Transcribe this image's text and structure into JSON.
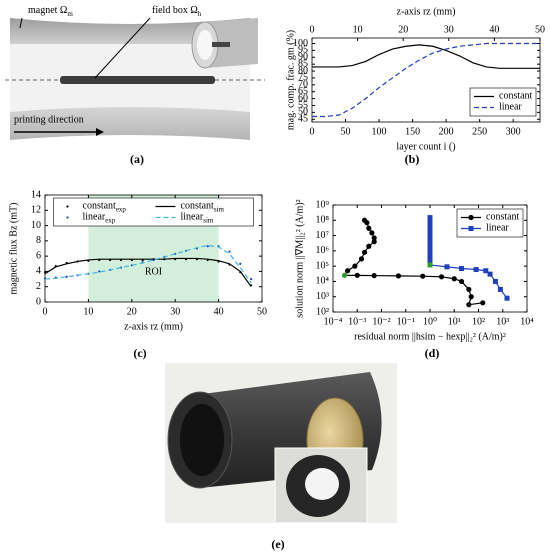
{
  "figure": {
    "captions": [
      "(a)",
      "(b)",
      "(c)",
      "(d)",
      "(e)"
    ],
    "panel_a": {
      "magnet": {
        "text": "magnet Ω",
        "sub": "m"
      },
      "field_box": {
        "text": "field box Ω",
        "sub": "h"
      },
      "printing_direction": "printing direction"
    }
  },
  "chart_data": [
    {
      "type": "line",
      "xlabel": "layer count i ()",
      "x2label": "z-axis rz (mm)",
      "ylabel": "mag. comp. frac. gm (%)",
      "xlim": [
        0,
        340
      ],
      "xticks": [
        0,
        50,
        100,
        150,
        200,
        250,
        300
      ],
      "x2lim": [
        0,
        50
      ],
      "x2ticks": [
        0,
        10,
        20,
        30,
        40,
        50
      ],
      "ylim": [
        43,
        104
      ],
      "yticks": [
        45,
        50,
        55,
        60,
        65,
        70,
        75,
        80,
        85,
        90,
        95,
        100
      ],
      "legend": "lower right",
      "x": [
        0,
        20,
        40,
        60,
        80,
        100,
        120,
        140,
        160,
        180,
        200,
        220,
        240,
        260,
        280,
        300,
        320,
        340
      ],
      "series": [
        {
          "name": "constant",
          "color": "#000000",
          "values": [
            83,
            83,
            83,
            84,
            87,
            92,
            96,
            98,
            99,
            98,
            95,
            91,
            86,
            83,
            82,
            82,
            82,
            82
          ]
        },
        {
          "name": "linear",
          "color": "#1f3fbf",
          "dash": true,
          "values": [
            47,
            47,
            48,
            53,
            60,
            68,
            75,
            82,
            88,
            93,
            96,
            98,
            99,
            100,
            100,
            100,
            100,
            100
          ]
        }
      ]
    },
    {
      "type": "line",
      "xlabel": "z-axis rz (mm)",
      "ylabel": "magnetic flux Bz (mT)",
      "xlim": [
        0,
        50
      ],
      "xticks": [
        0,
        10,
        20,
        30,
        40,
        50
      ],
      "ylim": [
        0,
        14
      ],
      "yticks": [
        0,
        2,
        4,
        6,
        8,
        10,
        12,
        14
      ],
      "roi": {
        "label": "ROI",
        "range": [
          10,
          40
        ],
        "color": "#d3efdb"
      },
      "legend": "upper center",
      "legend_columns": 2,
      "x": [
        0,
        2.5,
        5,
        7.5,
        10,
        12.5,
        15,
        17.5,
        20,
        22.5,
        25,
        27.5,
        30,
        32.5,
        35,
        37.5,
        40,
        42.5,
        45,
        47.5
      ],
      "series": [
        {
          "name": "constant",
          "name_sub": "exp",
          "color": "#000000",
          "style": "dots",
          "values": [
            3.9,
            4.7,
            5.1,
            5.3,
            5.4,
            5.5,
            5.5,
            5.5,
            5.5,
            5.5,
            5.6,
            5.6,
            5.6,
            5.6,
            5.6,
            5.5,
            5.3,
            4.9,
            3.9,
            2.2
          ]
        },
        {
          "name": "linear",
          "name_sub": "exp",
          "color": "#1f3fbf",
          "style": "dots",
          "values": [
            3.1,
            3.2,
            3.3,
            3.5,
            3.7,
            4.0,
            4.2,
            4.5,
            4.8,
            5.2,
            5.5,
            5.9,
            6.3,
            6.7,
            7.0,
            7.3,
            7.3,
            6.6,
            5.0,
            3.0
          ]
        },
        {
          "name": "constant",
          "name_sub": "sim",
          "color": "#000000",
          "values": [
            3.7,
            4.6,
            5.0,
            5.3,
            5.5,
            5.6,
            5.6,
            5.6,
            5.6,
            5.6,
            5.6,
            5.6,
            5.7,
            5.7,
            5.7,
            5.6,
            5.4,
            5.0,
            4.0,
            2.0
          ]
        },
        {
          "name": "linear",
          "name_sub": "sim",
          "color": "#3fb8e0",
          "dash": true,
          "values": [
            3.0,
            3.1,
            3.3,
            3.5,
            3.7,
            3.9,
            4.2,
            4.5,
            4.8,
            5.1,
            5.5,
            5.9,
            6.3,
            6.7,
            7.1,
            7.4,
            7.2,
            6.3,
            4.5,
            2.5
          ]
        }
      ]
    },
    {
      "type": "line",
      "xscale": "log",
      "yscale": "log",
      "xlabel": "residual norm ||hsim − hexp||₂² (A/m)²",
      "ylabel": "solution norm ||∇M||₂² (A/m)²",
      "xlim": [
        0.0001,
        10000
      ],
      "xticks": [
        {
          "value": 0.0001,
          "label": "10⁻⁴"
        },
        {
          "value": 0.001,
          "label": "10⁻³"
        },
        {
          "value": 0.01,
          "label": "10⁻²"
        },
        {
          "value": 0.1,
          "label": "10⁻¹"
        },
        {
          "value": 1,
          "label": "10⁰"
        },
        {
          "value": 10,
          "label": "10¹"
        },
        {
          "value": 100,
          "label": "10²"
        },
        {
          "value": 1000,
          "label": "10³"
        },
        {
          "value": 10000,
          "label": "10⁴"
        }
      ],
      "ylim": [
        100,
        1000000000
      ],
      "yticks": [
        {
          "value": 100,
          "label": "10²"
        },
        {
          "value": 1000,
          "label": "10³"
        },
        {
          "value": 10000,
          "label": "10⁴"
        },
        {
          "value": 100000,
          "label": "10⁵"
        },
        {
          "value": 1000000,
          "label": "10⁶"
        },
        {
          "value": 10000000,
          "label": "10⁷"
        },
        {
          "value": 100000000,
          "label": "10⁸"
        },
        {
          "value": 1000000000,
          "label": "10⁹"
        }
      ],
      "legend": "upper right",
      "series": [
        {
          "name": "constant",
          "color": "#000000",
          "marker": "circle",
          "highlight": {
            "index": 11,
            "color": "#2ca02c"
          },
          "x": [
            0.002,
            0.0025,
            0.003,
            0.004,
            0.005,
            0.005,
            0.003,
            0.002,
            0.0015,
            0.0008,
            0.0004,
            0.0003,
            0.001,
            0.005,
            0.05,
            0.5,
            3,
            10,
            20,
            40,
            50,
            40,
            150
          ],
          "values": [
            100000000.0,
            70000000.0,
            30000000.0,
            15000000.0,
            7000000.0,
            4000000.0,
            2000000.0,
            800000.0,
            300000.0,
            100000.0,
            50000.0,
            25000.0,
            25000.0,
            24000.0,
            23000.0,
            22000.0,
            20000.0,
            15000.0,
            10000.0,
            3000.0,
            1000.0,
            300.0,
            400.0
          ]
        },
        {
          "name": "linear",
          "color": "#1f3fbf",
          "marker": "square",
          "highlight": {
            "index": 11,
            "color": "#2ca02c"
          },
          "x": [
            1,
            1,
            1,
            1,
            1,
            1,
            1,
            1,
            1,
            1,
            1,
            1,
            5,
            20,
            80,
            200,
            300,
            500,
            800,
            1500
          ],
          "values": [
            150000000.0,
            100000000.0,
            60000000.0,
            30000000.0,
            15000000.0,
            8000000.0,
            4000000.0,
            2000000.0,
            1000000.0,
            500000.0,
            250000.0,
            120000.0,
            90000.0,
            70000.0,
            60000.0,
            50000.0,
            30000.0,
            10000.0,
            3000.0,
            800.0
          ]
        }
      ]
    }
  ]
}
